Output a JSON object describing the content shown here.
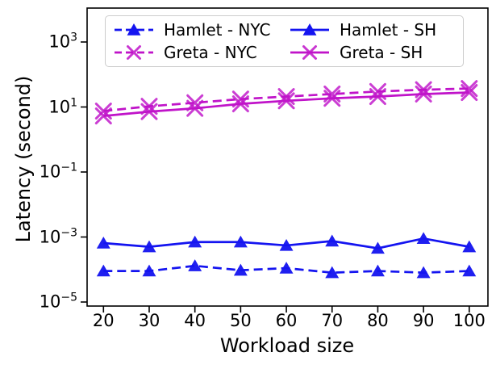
{
  "chart_data": {
    "type": "line",
    "title": "",
    "xlabel": "Workload size",
    "ylabel": "Latency (second)",
    "x": [
      20,
      30,
      40,
      50,
      60,
      70,
      80,
      90,
      100
    ],
    "x_tick_labels": [
      "20",
      "30",
      "40",
      "50",
      "60",
      "70",
      "80",
      "90",
      "100"
    ],
    "y_ticks": [
      {
        "base": "10",
        "exp": "3",
        "value": 1000
      },
      {
        "base": "10",
        "exp": "1",
        "value": 10
      },
      {
        "base": "10",
        "exp": "−1",
        "value": 0.1
      },
      {
        "base": "10",
        "exp": "−3",
        "value": 0.001
      },
      {
        "base": "10",
        "exp": "−5",
        "value": 1e-05
      }
    ],
    "xlim": [
      16,
      104
    ],
    "ylim": [
      5e-06,
      10000
    ],
    "y_scale": "log",
    "grid": false,
    "legend_position": "upper center, 2 columns",
    "series": [
      {
        "name": "Hamlet - NYC",
        "color": "#1414f0",
        "style": "dashed",
        "marker": "triangle",
        "values": [
          9e-05,
          9e-05,
          0.00013,
          9.5e-05,
          0.00011,
          8e-05,
          9e-05,
          8e-05,
          9e-05
        ]
      },
      {
        "name": "Greta - NYC",
        "color": "#c013c9",
        "style": "dashed",
        "marker": "x",
        "values": [
          7.5,
          10.5,
          13.5,
          17.5,
          21,
          25,
          30,
          34,
          37
        ]
      },
      {
        "name": "Hamlet - SH",
        "color": "#1414f0",
        "style": "solid",
        "marker": "triangle",
        "values": [
          0.00065,
          0.0005,
          0.0007,
          0.0007,
          0.00055,
          0.00075,
          0.00045,
          0.0009,
          0.0005
        ]
      },
      {
        "name": "Greta - SH",
        "color": "#c013c9",
        "style": "solid",
        "marker": "x",
        "values": [
          5.3,
          7.2,
          9.1,
          12.5,
          15.5,
          18.5,
          21,
          25,
          28
        ]
      }
    ]
  }
}
